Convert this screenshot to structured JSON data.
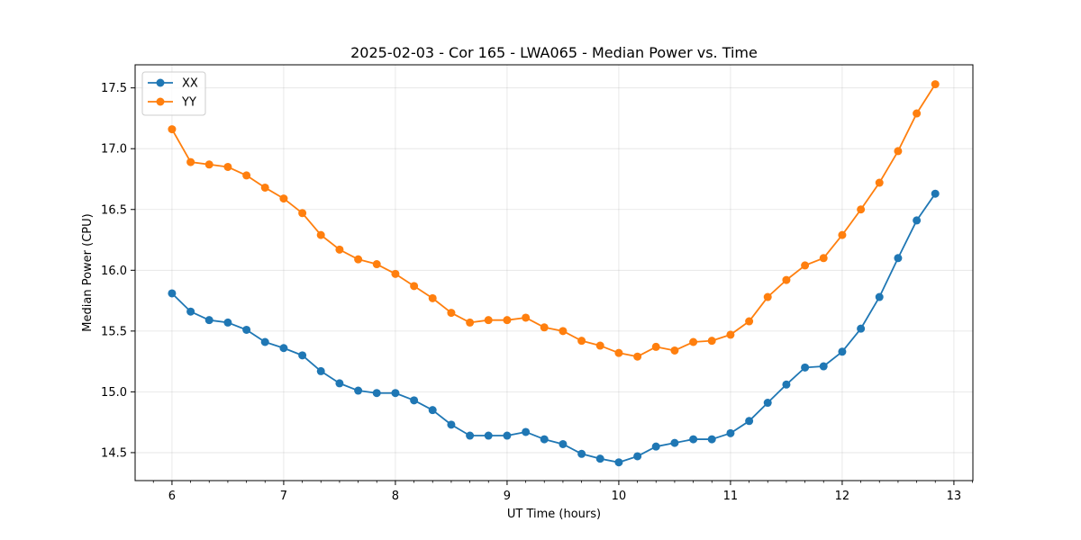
{
  "chart_data": {
    "type": "line",
    "title": "2025-02-03 - Cor 165 - LWA065 - Median Power vs. Time",
    "xlabel": "UT Time (hours)",
    "ylabel": "Median Power (CPU)",
    "xlim": [
      5.67,
      13.17
    ],
    "ylim": [
      14.27,
      17.69
    ],
    "xticks": [
      6,
      7,
      8,
      9,
      10,
      11,
      12,
      13
    ],
    "xtick_labels": [
      "6",
      "7",
      "8",
      "9",
      "10",
      "11",
      "12",
      "13"
    ],
    "yticks": [
      14.5,
      15.0,
      15.5,
      16.0,
      16.5,
      17.0,
      17.5
    ],
    "ytick_labels": [
      "14.5",
      "15.0",
      "15.5",
      "16.0",
      "16.5",
      "17.0",
      "17.5"
    ],
    "grid": true,
    "legend_position": "top-left",
    "x": [
      6.0,
      6.167,
      6.333,
      6.5,
      6.667,
      6.833,
      7.0,
      7.167,
      7.333,
      7.5,
      7.667,
      7.833,
      8.0,
      8.167,
      8.333,
      8.5,
      8.667,
      8.833,
      9.0,
      9.167,
      9.333,
      9.5,
      9.667,
      9.833,
      10.0,
      10.167,
      10.333,
      10.5,
      10.667,
      10.833,
      11.0,
      11.167,
      11.333,
      11.5,
      11.667,
      11.833,
      12.0,
      12.167,
      12.333,
      12.5,
      12.667,
      12.833
    ],
    "series": [
      {
        "name": "XX",
        "color": "#1f77b4",
        "values": [
          15.81,
          15.66,
          15.59,
          15.57,
          15.51,
          15.41,
          15.36,
          15.3,
          15.17,
          15.07,
          15.01,
          14.99,
          14.99,
          14.93,
          14.85,
          14.73,
          14.64,
          14.64,
          14.64,
          14.67,
          14.61,
          14.57,
          14.49,
          14.45,
          14.42,
          14.47,
          14.55,
          14.58,
          14.61,
          14.61,
          14.66,
          14.76,
          14.91,
          15.06,
          15.2,
          15.21,
          15.33,
          15.52,
          15.78,
          16.1,
          16.41,
          16.63
        ]
      },
      {
        "name": "YY",
        "color": "#ff7f0e",
        "values": [
          17.16,
          16.89,
          16.87,
          16.85,
          16.78,
          16.68,
          16.59,
          16.47,
          16.29,
          16.17,
          16.09,
          16.05,
          15.97,
          15.87,
          15.77,
          15.65,
          15.57,
          15.59,
          15.59,
          15.61,
          15.53,
          15.5,
          15.42,
          15.38,
          15.32,
          15.29,
          15.37,
          15.34,
          15.41,
          15.42,
          15.47,
          15.58,
          15.78,
          15.92,
          16.04,
          16.1,
          16.29,
          16.5,
          16.72,
          16.98,
          17.29,
          17.53
        ]
      }
    ]
  }
}
